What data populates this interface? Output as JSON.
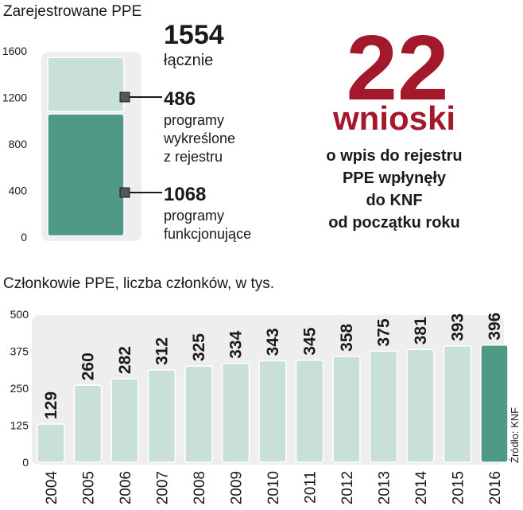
{
  "colors": {
    "accent_red": "#a3182a",
    "bar_light": "#c9e0d7",
    "bar_dark": "#4e9a87",
    "panel": "#eeeeee",
    "text": "#1a1a1a"
  },
  "stack_chart": {
    "title": "Zarejestrowane PPE",
    "total_value": "1554",
    "total_label": "łącznie",
    "removed_value": "486",
    "removed_label_lines": [
      "programy",
      "wykreślone",
      "z rejestru"
    ],
    "active_value": "1068",
    "active_label_lines": [
      "programy",
      "funkcjonujące"
    ]
  },
  "headline": {
    "number": "22",
    "word": "wnioski",
    "text_lines": [
      "o wpis do rejestru",
      "PPE wpłynęły",
      "do KNF",
      "od początku roku"
    ]
  },
  "members_chart": {
    "title": "Członkowie PPE, liczba członków, w tys.",
    "source": "Źródło: KNF"
  },
  "chart_data": [
    {
      "type": "bar",
      "stacked": true,
      "title": "Zarejestrowane PPE",
      "categories": [
        "PPE"
      ],
      "series": [
        {
          "name": "programy funkcjonujące",
          "values": [
            1068
          ]
        },
        {
          "name": "programy wykreślone z rejestru",
          "values": [
            486
          ]
        }
      ],
      "total": 1554,
      "yticks": [
        0,
        400,
        800,
        1200,
        1600
      ],
      "ylim": [
        0,
        1600
      ],
      "grid": false
    },
    {
      "type": "bar",
      "title": "Członkowie PPE, liczba członków, w tys.",
      "categories": [
        "2004",
        "2005",
        "2006",
        "2007",
        "2008",
        "2009",
        "2010",
        "2011",
        "2012",
        "2013",
        "2014",
        "2015",
        "2016"
      ],
      "values": [
        129,
        260,
        282,
        312,
        325,
        334,
        343,
        345,
        358,
        375,
        381,
        393,
        396
      ],
      "highlight_index": 12,
      "yticks": [
        0,
        125,
        250,
        375,
        500
      ],
      "ylim": [
        0,
        500
      ],
      "grid": false
    }
  ]
}
